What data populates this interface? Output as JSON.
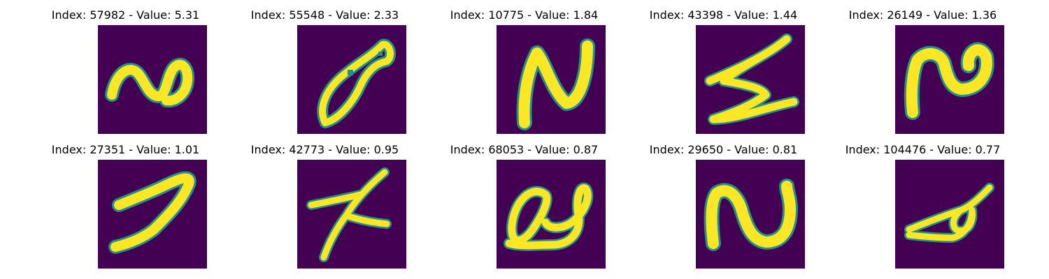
{
  "panels": [
    {
      "title": "Index: 57982 - Value: 5.31",
      "glyph": "handwritten-n-icon"
    },
    {
      "title": "Index: 55548 - Value: 2.33",
      "glyph": "handwritten-fish-loop-icon"
    },
    {
      "title": "Index: 10775 - Value: 1.84",
      "glyph": "handwritten-N-icon"
    },
    {
      "title": "Index: 43398 - Value: 1.44",
      "glyph": "handwritten-z-icon"
    },
    {
      "title": "Index: 26149 - Value: 1.36",
      "glyph": "handwritten-n-loop-icon"
    },
    {
      "title": "Index: 27351 - Value: 1.01",
      "glyph": "handwritten-7-icon"
    },
    {
      "title": "Index: 42773 - Value: 0.95",
      "glyph": "handwritten-x-icon"
    },
    {
      "title": "Index: 68053 - Value: 0.87",
      "glyph": "handwritten-a-icon"
    },
    {
      "title": "Index: 29650 - Value: 0.81",
      "glyph": "handwritten-n-icon"
    },
    {
      "title": "Index: 104476 - Value: 0.77",
      "glyph": "handwritten-a-icon"
    }
  ],
  "colors": {
    "background": "#440154",
    "stroke": "#fde725",
    "edge": "#21918c"
  }
}
